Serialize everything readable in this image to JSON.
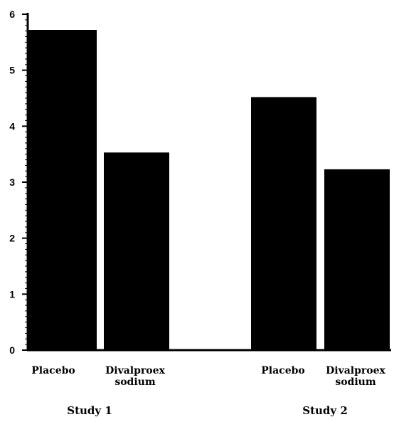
{
  "chart_data": {
    "type": "bar",
    "groups": [
      {
        "label": "Study 1",
        "categories": [
          {
            "label_lines": [
              "Placebo"
            ],
            "value": 5.72
          },
          {
            "label_lines": [
              "Divalproex",
              "sodium"
            ],
            "value": 3.53
          }
        ]
      },
      {
        "label": "Study 2",
        "categories": [
          {
            "label_lines": [
              "Placebo"
            ],
            "value": 4.52
          },
          {
            "label_lines": [
              "Divalproex",
              "sodium"
            ],
            "value": 3.23
          }
        ]
      }
    ],
    "ylim": [
      0,
      6
    ],
    "y_ticks": [
      "0",
      "1",
      "2",
      "3",
      "4",
      "5",
      "6"
    ],
    "title": "",
    "xlabel": "",
    "ylabel": "",
    "bar_color": "#000000",
    "grid": false
  }
}
